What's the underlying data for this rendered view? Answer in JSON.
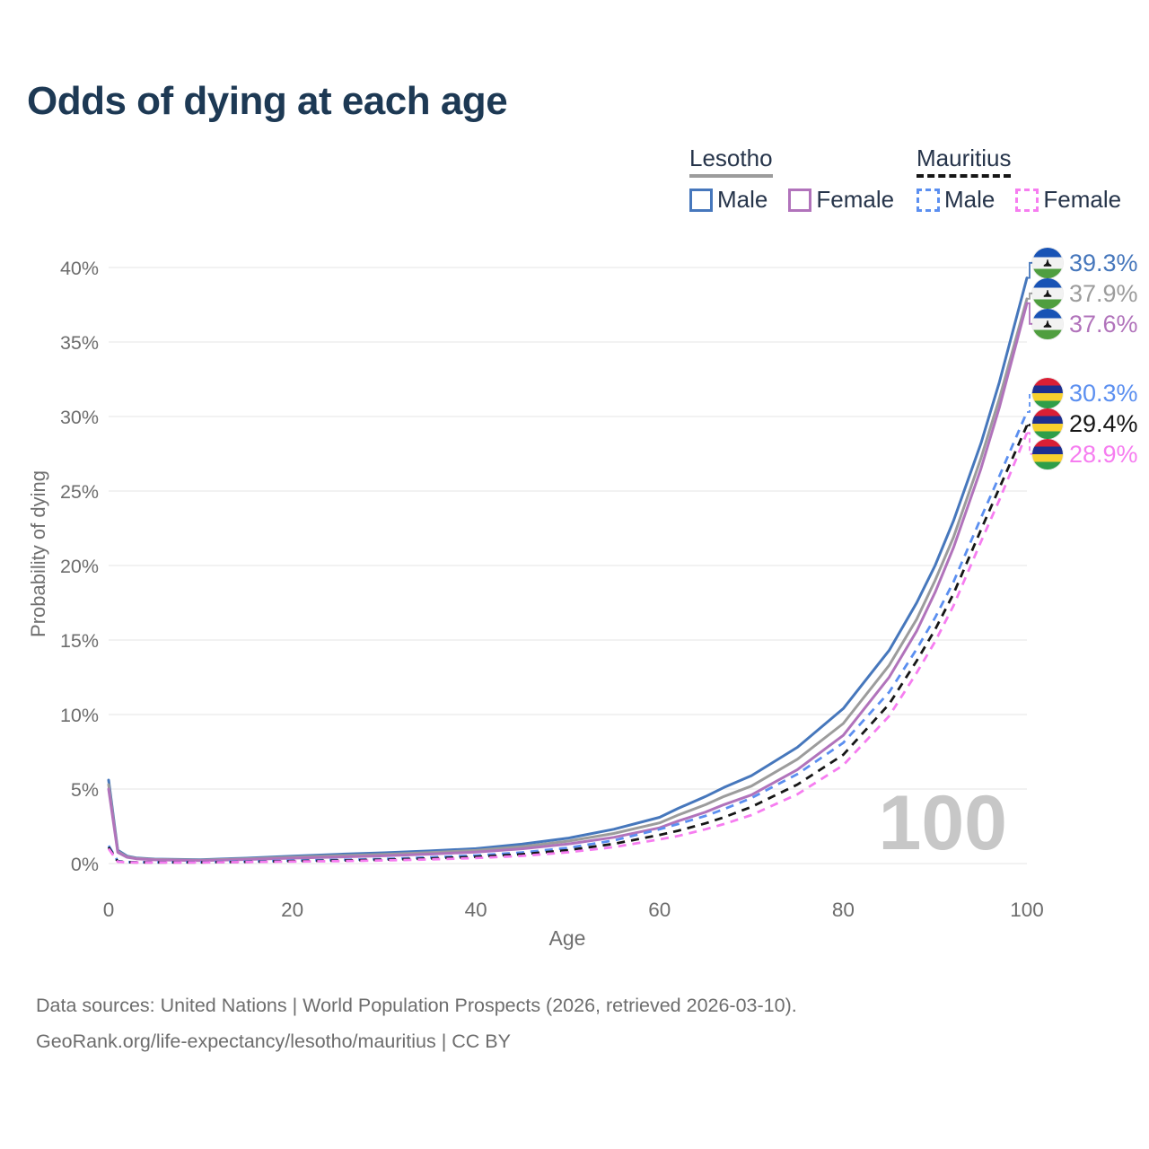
{
  "header": {
    "title": "Odds of dying at each age"
  },
  "legend": {
    "groups": [
      {
        "title": "Lesotho",
        "underline_series": 1,
        "items": [
          {
            "label": "Male",
            "series": 0
          },
          {
            "label": "Female",
            "series": 2
          }
        ]
      },
      {
        "title": "Mauritius",
        "underline_series": 4,
        "items": [
          {
            "label": "Male",
            "series": 3
          },
          {
            "label": "Female",
            "series": 5
          }
        ]
      }
    ]
  },
  "axes": {
    "x_label": "Age",
    "y_label": "Probability of dying"
  },
  "footer": {
    "line1": "Data sources: United Nations | World Population Prospects (2026, retrieved 2026-03-10).",
    "line2": "GeoRank.org/life-expectancy/lesotho/mauritius | CC BY"
  },
  "chart_data": {
    "type": "line",
    "title": "Odds of dying at each age",
    "xlabel": "Age",
    "ylabel": "Probability of dying",
    "xlim": [
      0,
      100
    ],
    "ylim": [
      0,
      40
    ],
    "x_ticks": [
      0,
      20,
      40,
      60,
      80,
      100
    ],
    "y_ticks": [
      0,
      5,
      10,
      15,
      20,
      25,
      30,
      35,
      40
    ],
    "y_tick_suffix": "%",
    "grid": "horizontal",
    "gridline_color": "#ebebeb",
    "tick_color": "#6d6d6d",
    "watermark": "100",
    "watermark_color": "#c7c7c7",
    "legend_position": "top-right",
    "flag_colors": {
      "lesotho": [
        "#1853b5",
        "#f2f2f2",
        "#4f9e3f"
      ],
      "mauritius": [
        "#d91f35",
        "#1c2f8f",
        "#f7d02e",
        "#2e9e49"
      ]
    },
    "x": [
      0,
      1,
      2,
      3,
      5,
      10,
      15,
      20,
      25,
      30,
      35,
      40,
      45,
      50,
      55,
      60,
      62,
      65,
      67,
      70,
      75,
      80,
      85,
      88,
      90,
      92,
      95,
      97,
      100
    ],
    "series": [
      {
        "name": "Lesotho Male",
        "country": "Lesotho",
        "sex": "Male",
        "color": "#4677bc",
        "dash": "solid",
        "flag": "lesotho",
        "end_label": "39.3%",
        "label_color": "#4677bc",
        "values": [
          5.6,
          0.9,
          0.5,
          0.38,
          0.3,
          0.26,
          0.36,
          0.5,
          0.62,
          0.72,
          0.85,
          1.0,
          1.3,
          1.7,
          2.3,
          3.1,
          3.7,
          4.5,
          5.1,
          5.9,
          7.8,
          10.4,
          14.3,
          17.5,
          20.0,
          23.0,
          28.2,
          32.3,
          39.3
        ]
      },
      {
        "name": "Lesotho Both sexes",
        "country": "Lesotho",
        "sex": "Both",
        "color": "#9c9c9c",
        "dash": "solid",
        "flag": "lesotho",
        "end_label": "37.9%",
        "label_color": "#9c9c9c",
        "values": [
          5.3,
          0.82,
          0.46,
          0.35,
          0.28,
          0.23,
          0.32,
          0.43,
          0.53,
          0.62,
          0.74,
          0.88,
          1.14,
          1.5,
          2.02,
          2.73,
          3.25,
          3.95,
          4.5,
          5.2,
          7.0,
          9.4,
          13.3,
          16.4,
          19.0,
          21.9,
          27.2,
          31.2,
          37.9
        ]
      },
      {
        "name": "Lesotho Female",
        "country": "Lesotho",
        "sex": "Female",
        "color": "#b173bb",
        "dash": "solid",
        "flag": "lesotho",
        "end_label": "37.6%",
        "label_color": "#b173bb",
        "values": [
          5.0,
          0.75,
          0.42,
          0.32,
          0.25,
          0.2,
          0.27,
          0.36,
          0.44,
          0.52,
          0.63,
          0.77,
          0.99,
          1.31,
          1.76,
          2.4,
          2.85,
          3.45,
          3.95,
          4.6,
          6.3,
          8.6,
          12.5,
          15.6,
          18.2,
          21.2,
          26.5,
          30.6,
          37.6
        ]
      },
      {
        "name": "Mauritius Male",
        "country": "Mauritius",
        "sex": "Male",
        "color": "#5b8ff0",
        "dash": "dashed",
        "flag": "mauritius",
        "end_label": "30.3%",
        "label_color": "#5b8ff0",
        "values": [
          1.2,
          0.16,
          0.1,
          0.09,
          0.08,
          0.09,
          0.13,
          0.2,
          0.25,
          0.31,
          0.41,
          0.54,
          0.74,
          1.05,
          1.55,
          2.3,
          2.65,
          3.2,
          3.65,
          4.4,
          6.0,
          8.1,
          11.5,
          14.4,
          16.5,
          18.9,
          23.2,
          26.0,
          30.3
        ]
      },
      {
        "name": "Mauritius Both sexes",
        "country": "Mauritius",
        "sex": "Both",
        "color": "#161616",
        "dash": "dashed",
        "flag": "mauritius",
        "end_label": "29.4%",
        "label_color": "#161616",
        "values": [
          1.1,
          0.14,
          0.09,
          0.08,
          0.08,
          0.08,
          0.11,
          0.16,
          0.2,
          0.26,
          0.34,
          0.45,
          0.62,
          0.9,
          1.32,
          1.92,
          2.2,
          2.7,
          3.1,
          3.8,
          5.3,
          7.3,
          10.7,
          13.6,
          15.7,
          18.1,
          22.4,
          25.2,
          29.4
        ]
      },
      {
        "name": "Mauritius Female",
        "country": "Mauritius",
        "sex": "Female",
        "color": "#f67df0",
        "dash": "dashed",
        "flag": "mauritius",
        "end_label": "28.9%",
        "label_color": "#f67df0",
        "values": [
          1.0,
          0.12,
          0.08,
          0.07,
          0.07,
          0.07,
          0.1,
          0.13,
          0.16,
          0.21,
          0.28,
          0.37,
          0.51,
          0.75,
          1.1,
          1.62,
          1.85,
          2.3,
          2.65,
          3.25,
          4.65,
          6.6,
          9.9,
          12.8,
          14.9,
          17.3,
          21.6,
          24.4,
          28.9
        ]
      }
    ],
    "label_groups": [
      [
        0,
        1,
        2
      ],
      [
        3,
        4,
        5
      ]
    ]
  }
}
